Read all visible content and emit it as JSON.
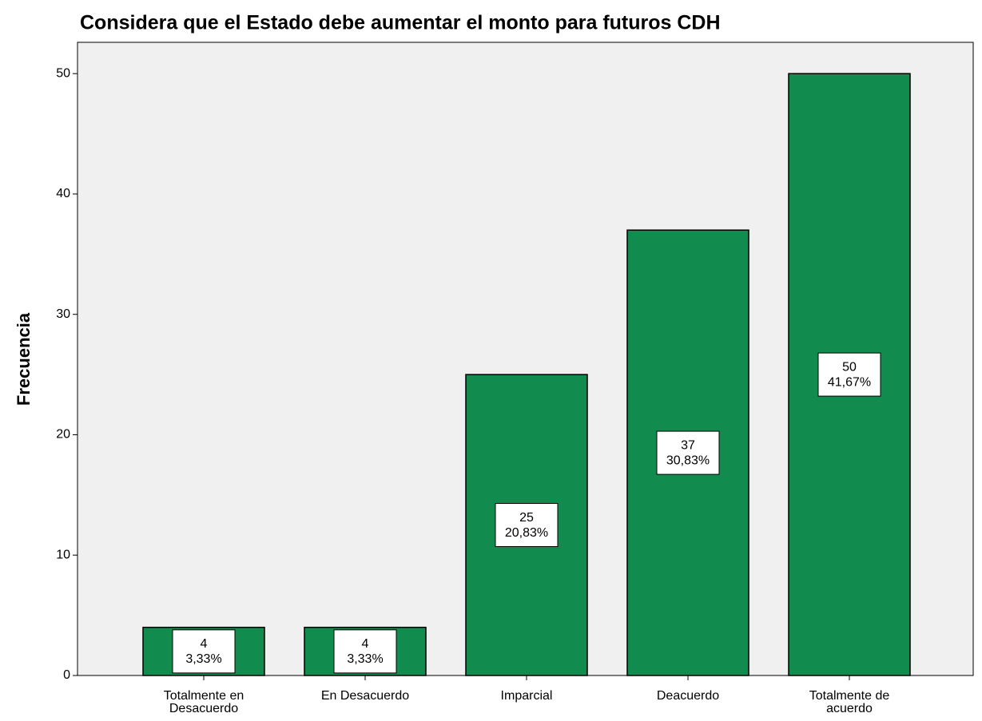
{
  "chart_data": {
    "type": "bar",
    "title": "Considera que el Estado debe aumentar el monto para futuros CDH",
    "y_label": "Frecuencia",
    "categories": [
      "Totalmente en Desacuerdo",
      "En Desacuerdo",
      "Imparcial",
      "Deacuerdo",
      "Totalmente de acuerdo"
    ],
    "values": [
      4,
      4,
      25,
      37,
      50
    ],
    "percentages": [
      3.33,
      3.33,
      20.83,
      30.83,
      41.67
    ],
    "percentage_labels": [
      "3,33%",
      "3,33%",
      "20,83%",
      "30,83%",
      "41,67%"
    ],
    "color": "#118c4e",
    "ylim": [
      0,
      52.6
    ],
    "yticks": [
      0,
      10,
      20,
      30,
      40,
      50
    ],
    "grid": false
  }
}
